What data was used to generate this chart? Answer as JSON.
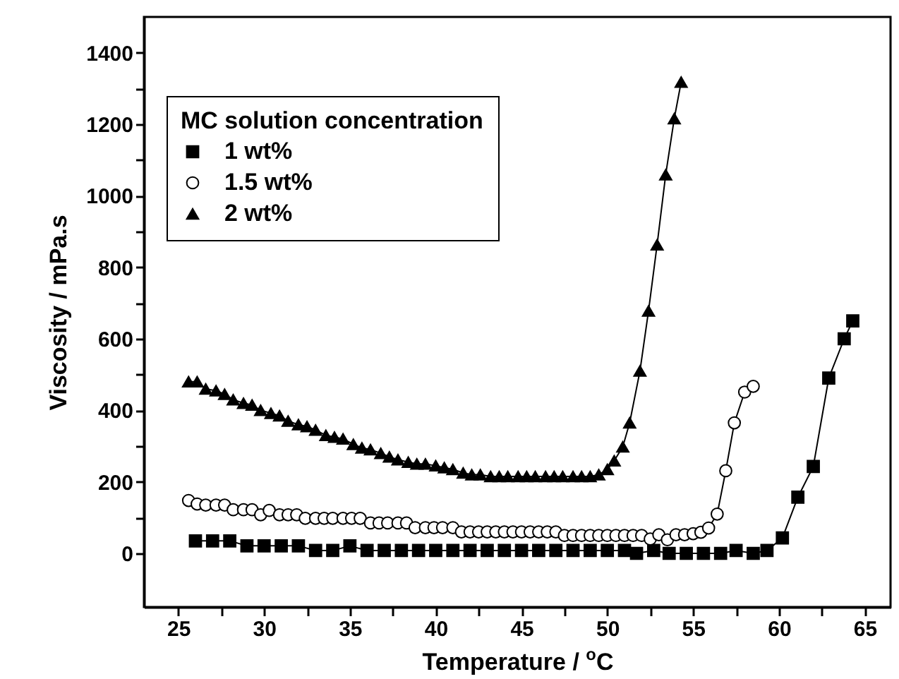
{
  "chart_data": {
    "type": "line",
    "xlabel": "Temperature / $^{o}$C",
    "ylabel": "Viscosity / mPa.s",
    "legend_title": "MC solution concentration",
    "legend": "top left",
    "xlim": [
      23,
      66.5
    ],
    "ylim": [
      -150,
      1500
    ],
    "xticks": [
      25,
      {
        "value": 27.5,
        "label": null
      },
      30,
      {
        "value": 32.5,
        "label": null
      },
      35,
      {
        "value": 37.5,
        "label": null
      },
      40,
      {
        "value": 42.5,
        "label": null
      },
      45,
      {
        "value": 47.5,
        "label": null
      },
      50,
      {
        "value": 52.5,
        "label": null
      },
      55,
      {
        "value": 57.5,
        "label": null
      },
      60,
      {
        "value": 62.5,
        "label": null
      },
      65
    ],
    "yticks": [
      0,
      {
        "value": 100,
        "label": null
      },
      200,
      {
        "value": 300,
        "label": null
      },
      400,
      {
        "value": 500,
        "label": null
      },
      600,
      {
        "value": 700,
        "label": null
      },
      800,
      {
        "value": 900,
        "label": null
      },
      1000,
      {
        "value": 1100,
        "label": null
      },
      1200,
      {
        "value": 1300,
        "label": null
      },
      1400
    ],
    "grid": false,
    "line_style": "solid",
    "series": [
      {
        "name": "1 wt%",
        "color": "#000000",
        "marker": "square",
        "x": [
          26,
          27,
          28,
          29,
          30,
          31,
          32,
          33,
          34,
          35,
          36,
          37,
          38,
          39,
          40,
          41,
          42,
          43,
          44,
          45,
          46,
          47,
          48,
          49,
          50,
          51,
          51.7,
          52.7,
          53.6,
          54.6,
          55.6,
          56.6,
          57.5,
          58.5,
          59.3,
          60.2,
          61.1,
          62.0,
          62.9,
          63.8,
          64.3
        ],
        "values": [
          35,
          35,
          35,
          21,
          21,
          21,
          21,
          8,
          8,
          21,
          8,
          8,
          8,
          8,
          8,
          8,
          8,
          8,
          8,
          8,
          8,
          8,
          8,
          8,
          8,
          8,
          0,
          8,
          0,
          0,
          0,
          0,
          8,
          0,
          8,
          43,
          157,
          243,
          490,
          600,
          650
        ]
      },
      {
        "name": "1.5 wt%",
        "color": "#000000",
        "marker": "circle",
        "x": [
          25.6,
          26.1,
          26.6,
          27.2,
          27.7,
          28.2,
          28.8,
          29.3,
          29.8,
          30.3,
          30.9,
          31.4,
          31.9,
          32.4,
          33.0,
          33.5,
          34.0,
          34.6,
          35.1,
          35.6,
          36.2,
          36.7,
          37.2,
          37.8,
          38.3,
          38.8,
          39.4,
          39.9,
          40.4,
          41.0,
          41.5,
          42.0,
          42.5,
          43.0,
          43.5,
          44.0,
          44.5,
          45.0,
          45.5,
          46.0,
          46.5,
          47.0,
          47.5,
          48.0,
          48.5,
          49.0,
          49.5,
          50.0,
          50.5,
          51.0,
          51.5,
          52.0,
          52.5,
          53.0,
          53.5,
          54.0,
          54.5,
          55.0,
          55.45,
          55.9,
          56.4,
          56.9,
          57.4,
          58.0,
          58.5
        ],
        "values": [
          148,
          138,
          135,
          135,
          135,
          122,
          122,
          122,
          108,
          120,
          108,
          108,
          108,
          98,
          98,
          98,
          98,
          98,
          98,
          98,
          85,
          85,
          85,
          85,
          85,
          72,
          72,
          72,
          72,
          72,
          60,
          60,
          60,
          60,
          60,
          60,
          60,
          60,
          60,
          60,
          60,
          60,
          50,
          50,
          50,
          50,
          50,
          50,
          50,
          50,
          50,
          50,
          40,
          52,
          38,
          52,
          52,
          55,
          59,
          71,
          110,
          231,
          365,
          451,
          467
        ]
      },
      {
        "name": "2 wt%",
        "color": "#000000",
        "marker": "triangle",
        "x": [
          25.6,
          26.1,
          26.6,
          27.2,
          27.7,
          28.2,
          28.8,
          29.3,
          29.8,
          30.4,
          30.9,
          31.4,
          32.0,
          32.5,
          33.0,
          33.6,
          34.1,
          34.6,
          35.2,
          35.7,
          36.2,
          36.8,
          37.3,
          37.8,
          38.4,
          38.9,
          39.4,
          40.0,
          40.5,
          41.0,
          41.6,
          42.1,
          42.6,
          43.2,
          43.7,
          44.2,
          44.8,
          45.3,
          45.8,
          46.4,
          46.9,
          47.4,
          48.0,
          48.5,
          49.0,
          49.5,
          50.0,
          50.4,
          50.9,
          51.3,
          51.9,
          52.4,
          52.9,
          53.4,
          53.9,
          54.3
        ],
        "values": [
          480,
          480,
          460,
          455,
          445,
          430,
          420,
          415,
          400,
          392,
          385,
          370,
          360,
          355,
          345,
          330,
          325,
          320,
          305,
          295,
          290,
          280,
          270,
          262,
          255,
          250,
          250,
          245,
          240,
          235,
          225,
          220,
          220,
          215,
          215,
          215,
          215,
          215,
          215,
          215,
          215,
          215,
          215,
          215,
          215,
          220,
          235,
          259,
          298,
          365,
          510,
          678,
          863,
          1059,
          1216,
          1318
        ]
      }
    ]
  }
}
